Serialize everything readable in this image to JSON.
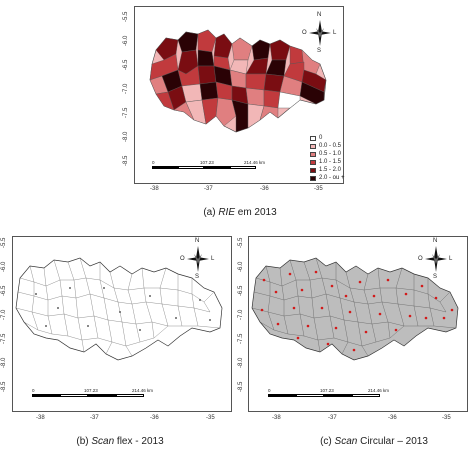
{
  "panel_a": {
    "caption_prefix": "(a) ",
    "caption_italic": "RIE",
    "caption_suffix": " em 2013",
    "x_ticks": [
      "-38",
      "-37",
      "-36",
      "-35"
    ],
    "y_ticks": [
      "-5.5",
      "-6.0",
      "-6.5",
      "-7.0",
      "-7.5",
      "-8.0",
      "-8.5"
    ],
    "legend": [
      {
        "label": "0",
        "color": "#ffffff"
      },
      {
        "label": "0.0 - 0.5",
        "color": "#f2b7b7"
      },
      {
        "label": "0.5 - 1.0",
        "color": "#e07f80"
      },
      {
        "label": "1.0 - 1.5",
        "color": "#c13a3d"
      },
      {
        "label": "1.5 - 2.0",
        "color": "#7a0d12"
      },
      {
        "label": "2.0 - ou +",
        "color": "#2a0205"
      }
    ],
    "scale": {
      "start": "0",
      "mid": "107.23",
      "end": "214.46 km"
    },
    "compass": {
      "n": "N",
      "s": "S",
      "o": "O",
      "l": "L"
    }
  },
  "panel_b": {
    "caption_prefix": "(b) ",
    "caption_italic": "Scan",
    "caption_suffix": " flex - 2013",
    "x_ticks": [
      "-38",
      "-37",
      "-36",
      "-35"
    ],
    "y_ticks": [
      "-5.5",
      "-6.0",
      "-6.5",
      "-7.0",
      "-7.5",
      "-8.0",
      "-8.5"
    ],
    "scale": {
      "start": "0",
      "mid": "107.23",
      "end": "214.46 km"
    },
    "compass": {
      "n": "N",
      "s": "S",
      "o": "O",
      "l": "L"
    }
  },
  "panel_c": {
    "caption_prefix": "(c) ",
    "caption_italic": "Scan",
    "caption_suffix": " Circular – 2013",
    "x_ticks": [
      "-38",
      "-37",
      "-36",
      "-35"
    ],
    "y_ticks": [
      "-5.5",
      "-6.0",
      "-6.5",
      "-7.0",
      "-7.5",
      "-8.0",
      "-8.5"
    ],
    "scale": {
      "start": "0",
      "mid": "107.23",
      "end": "214.46 km"
    },
    "compass": {
      "n": "N",
      "s": "S",
      "o": "O",
      "l": "L"
    }
  }
}
